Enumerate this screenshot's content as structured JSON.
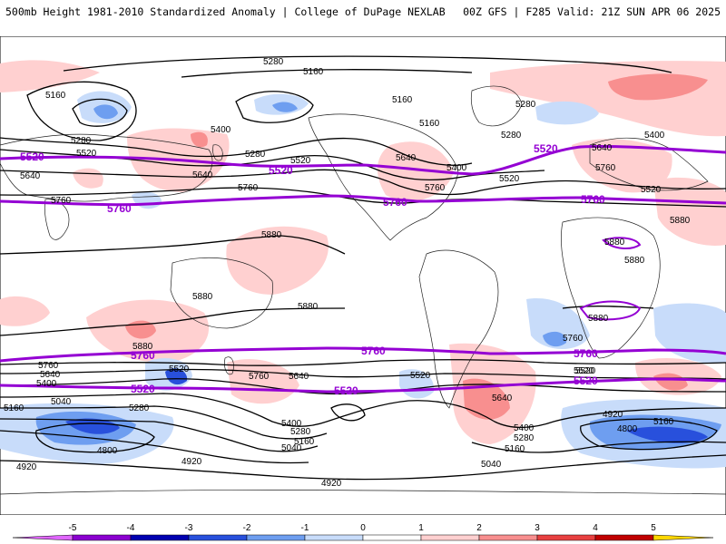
{
  "header": {
    "left_title": "500mb Height 1981-2010 Standardized Anomaly | College of DuPage NEXLAB",
    "right_title": "00Z GFS | F285 Valid: 21Z SUN APR 06 2025"
  },
  "map": {
    "projection": "cylindrical",
    "contour_labels": [
      {
        "id": "c1",
        "text": "5280"
      },
      {
        "id": "c2",
        "text": "5160"
      },
      {
        "id": "c3",
        "text": "5160"
      },
      {
        "id": "c4",
        "text": "5280"
      },
      {
        "id": "c5",
        "text": "5520"
      },
      {
        "id": "c6",
        "text": "5400"
      },
      {
        "id": "c7",
        "text": "5280"
      },
      {
        "id": "c8",
        "text": "5520"
      },
      {
        "id": "c9",
        "text": "5640"
      },
      {
        "id": "c10",
        "text": "5640"
      },
      {
        "id": "c11",
        "text": "5760"
      },
      {
        "id": "c12",
        "text": "5760"
      },
      {
        "id": "c13",
        "text": "5160"
      },
      {
        "id": "c14",
        "text": "5160"
      },
      {
        "id": "c15",
        "text": "5640"
      },
      {
        "id": "c16",
        "text": "5400"
      },
      {
        "id": "c17",
        "text": "5520"
      },
      {
        "id": "c18",
        "text": "5760"
      },
      {
        "id": "c19",
        "text": "5280"
      },
      {
        "id": "c20",
        "text": "5280"
      },
      {
        "id": "c21",
        "text": "5640"
      },
      {
        "id": "c22",
        "text": "5400"
      },
      {
        "id": "c23",
        "text": "5760"
      },
      {
        "id": "c24",
        "text": "5520"
      },
      {
        "id": "c25",
        "text": "5880"
      },
      {
        "id": "c26",
        "text": "5880"
      },
      {
        "id": "c27",
        "text": "5880"
      },
      {
        "id": "c28",
        "text": "5880"
      },
      {
        "id": "c29",
        "text": "5880"
      },
      {
        "id": "c30",
        "text": "5880"
      },
      {
        "id": "c31",
        "text": "5880"
      },
      {
        "id": "c32",
        "text": "5760"
      },
      {
        "id": "c33",
        "text": "5640"
      },
      {
        "id": "c34",
        "text": "5400"
      },
      {
        "id": "c35",
        "text": "5520"
      },
      {
        "id": "c36",
        "text": "5040"
      },
      {
        "id": "c37",
        "text": "5160"
      },
      {
        "id": "c38",
        "text": "5280"
      },
      {
        "id": "c39",
        "text": "4800"
      },
      {
        "id": "c40",
        "text": "4920"
      },
      {
        "id": "c41",
        "text": "5760"
      },
      {
        "id": "c42",
        "text": "5640"
      },
      {
        "id": "c43",
        "text": "5400"
      },
      {
        "id": "c44",
        "text": "5280"
      },
      {
        "id": "c45",
        "text": "5160"
      },
      {
        "id": "c46",
        "text": "5040"
      },
      {
        "id": "c47",
        "text": "4920"
      },
      {
        "id": "c48",
        "text": "5520"
      },
      {
        "id": "c49",
        "text": "5640"
      },
      {
        "id": "c50",
        "text": "5400"
      },
      {
        "id": "c51",
        "text": "5280"
      },
      {
        "id": "c52",
        "text": "5160"
      },
      {
        "id": "c53",
        "text": "5040"
      },
      {
        "id": "c54",
        "text": "4920"
      },
      {
        "id": "c55",
        "text": "5520"
      },
      {
        "id": "c56",
        "text": "4800"
      },
      {
        "id": "c57",
        "text": "5160"
      },
      {
        "id": "c58",
        "text": "4920"
      },
      {
        "id": "c59",
        "text": "5760"
      },
      {
        "id": "c60",
        "text": "5520"
      },
      {
        "id": "c61",
        "text": "5880"
      }
    ],
    "purple_labels": [
      {
        "id": "p1",
        "text": "5520"
      },
      {
        "id": "p2",
        "text": "5520"
      },
      {
        "id": "p3",
        "text": "5520"
      },
      {
        "id": "p4",
        "text": "5760"
      },
      {
        "id": "p5",
        "text": "5760"
      },
      {
        "id": "p6",
        "text": "5760"
      },
      {
        "id": "p7",
        "text": "5760"
      },
      {
        "id": "p8",
        "text": "5760"
      },
      {
        "id": "p9",
        "text": "5760"
      },
      {
        "id": "p10",
        "text": "5520"
      },
      {
        "id": "p11",
        "text": "5520"
      },
      {
        "id": "p12",
        "text": "5520"
      }
    ]
  },
  "colorbar": {
    "ticks": [
      "-5",
      "-4",
      "-3",
      "-2",
      "-1",
      "0",
      "1",
      "2",
      "3",
      "4",
      "5"
    ],
    "colors": [
      "#e066ff",
      "#8b00d0",
      "#0000b0",
      "#2850dc",
      "#6e9ef0",
      "#c8dcfa",
      "#ffffff",
      "#ffd0d0",
      "#f88f8f",
      "#e84040",
      "#c00000",
      "#ff8c00",
      "#ffd700"
    ]
  }
}
